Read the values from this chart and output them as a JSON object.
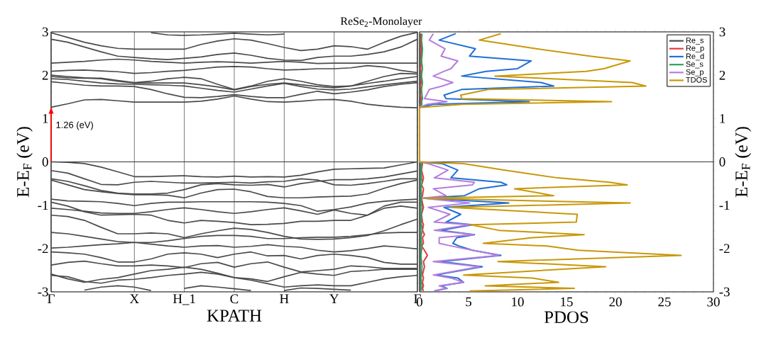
{
  "chart_data": [
    {
      "type": "line",
      "title": "ReSe$_{2}$-Monolayer",
      "xlabel": "KPATH",
      "ylabel": "E-E$_{F}$ (eV)",
      "categories": [
        "Γ",
        null,
        null,
        null,
        null,
        "X",
        null,
        null,
        "H_1",
        null,
        null,
        "C",
        null,
        null,
        "H",
        null,
        null,
        "Y",
        null,
        null,
        null,
        null,
        "Γ"
      ],
      "ylim": [
        -3,
        3
      ],
      "yticks": [
        -3,
        -2,
        -1,
        0,
        1,
        2,
        3
      ],
      "series": [
        {
          "color": "#4a4a4a",
          "values": [
            1.26,
            1.34,
            1.43,
            1.44,
            1.41,
            1.38,
            1.38,
            1.38,
            1.38,
            1.4,
            1.45,
            1.52,
            1.45,
            1.39,
            1.38,
            1.4,
            1.43,
            1.44,
            1.4,
            1.33,
            1.29,
            1.26,
            1.25
          ]
        },
        {
          "color": "#4a4a4a",
          "values": [
            1.85,
            1.81,
            1.77,
            1.75,
            1.75,
            1.74,
            1.67,
            1.57,
            1.49,
            1.48,
            1.51,
            1.55,
            1.51,
            1.48,
            1.48,
            1.56,
            1.63,
            1.57,
            1.61,
            1.66,
            1.74,
            1.79,
            1.83
          ]
        },
        {
          "color": "#4a4a4a",
          "values": [
            1.92,
            1.9,
            1.86,
            1.82,
            1.8,
            1.79,
            1.78,
            1.77,
            1.75,
            1.7,
            1.65,
            1.61,
            1.68,
            1.75,
            1.81,
            1.74,
            1.68,
            1.66,
            1.68,
            1.73,
            1.78,
            1.82,
            1.86
          ]
        },
        {
          "color": "#4a4a4a",
          "values": [
            1.97,
            1.94,
            1.93,
            1.93,
            1.88,
            1.83,
            1.86,
            1.92,
            1.95,
            1.92,
            1.79,
            1.67,
            1.75,
            1.86,
            1.92,
            1.86,
            1.78,
            1.74,
            1.75,
            1.86,
            1.97,
            2.04,
            2.03
          ]
        },
        {
          "color": "#4a4a4a",
          "values": [
            2.0,
            1.97,
            1.94,
            1.92,
            1.86,
            1.82,
            1.82,
            1.82,
            1.82,
            1.78,
            1.73,
            1.66,
            1.74,
            1.79,
            1.82,
            1.78,
            1.74,
            1.71,
            1.75,
            1.81,
            1.86,
            1.92,
            1.97
          ]
        },
        {
          "color": "#4a4a4a",
          "values": [
            2.09,
            2.11,
            2.12,
            2.1,
            2.08,
            2.04,
            2.06,
            2.09,
            2.11,
            2.15,
            2.19,
            2.2,
            2.19,
            2.15,
            2.12,
            2.13,
            2.15,
            2.15,
            2.17,
            2.22,
            2.19,
            2.11,
            2.06
          ]
        },
        {
          "color": "#4a4a4a",
          "values": [
            2.28,
            2.3,
            2.32,
            2.35,
            2.37,
            2.35,
            2.32,
            2.3,
            2.28,
            2.3,
            2.31,
            2.3,
            2.28,
            2.3,
            2.32,
            2.3,
            2.27,
            2.28,
            2.28,
            2.28,
            2.28,
            2.28,
            2.28
          ]
        },
        {
          "color": "#4a4a4a",
          "values": [
            2.83,
            2.76,
            2.65,
            2.54,
            2.44,
            2.41,
            2.38,
            2.36,
            2.39,
            2.42,
            2.48,
            2.51,
            2.46,
            2.39,
            2.35,
            2.34,
            2.41,
            2.44,
            2.44,
            2.48,
            2.54,
            2.65,
            2.83
          ]
        },
        {
          "color": "#4a4a4a",
          "values": [
            2.98,
            2.87,
            2.76,
            2.68,
            2.62,
            2.6,
            2.6,
            2.6,
            2.6,
            2.71,
            2.79,
            2.84,
            2.81,
            2.73,
            2.64,
            2.57,
            2.6,
            2.68,
            2.66,
            2.6,
            2.76,
            2.9,
            2.99
          ]
        },
        {
          "color": "#4a4a4a",
          "values": [
            null,
            null,
            null,
            null,
            null,
            null,
            2.98,
            2.93,
            2.92,
            2.93,
            2.95,
            2.97,
            2.95,
            2.93,
            2.95,
            null,
            null,
            null,
            null,
            null,
            null,
            null,
            null
          ]
        },
        {
          "color": "#4a4a4a",
          "values": [
            0,
            -0.01,
            -0.04,
            -0.12,
            -0.23,
            -0.34,
            -0.34,
            -0.33,
            -0.32,
            -0.34,
            -0.35,
            -0.33,
            -0.35,
            -0.34,
            -0.35,
            -0.31,
            -0.23,
            -0.17,
            -0.16,
            -0.15,
            -0.14,
            -0.07,
            0
          ]
        },
        {
          "color": "#4a4a4a",
          "values": [
            -0.2,
            -0.26,
            -0.39,
            -0.52,
            -0.53,
            -0.47,
            -0.45,
            -0.47,
            -0.49,
            -0.49,
            -0.48,
            -0.47,
            -0.49,
            -0.46,
            -0.45,
            -0.39,
            -0.42,
            -0.53,
            -0.54,
            -0.5,
            -0.45,
            -0.39,
            -0.39
          ]
        },
        {
          "color": "#4a4a4a",
          "values": [
            -0.39,
            -0.45,
            -0.55,
            -0.66,
            -0.72,
            -0.74,
            -0.74,
            -0.72,
            -0.64,
            -0.53,
            -0.5,
            -0.53,
            -0.54,
            -0.52,
            -0.58,
            -0.5,
            -0.45,
            -0.41,
            -0.41,
            -0.39,
            -0.35,
            -0.28,
            -0.21
          ]
        },
        {
          "color": "#4a4a4a",
          "values": [
            -0.42,
            -0.53,
            -0.64,
            -0.69,
            -0.73,
            -0.76,
            -0.76,
            -0.77,
            -0.83,
            -0.72,
            -0.64,
            -0.63,
            -0.69,
            -0.8,
            -0.83,
            -0.83,
            -0.81,
            -0.8,
            -0.79,
            -0.74,
            -0.61,
            -0.5,
            -0.42
          ]
        },
        {
          "color": "#4a4a4a",
          "values": [
            -0.86,
            -0.9,
            -0.91,
            -0.92,
            -0.96,
            -1.01,
            -0.96,
            -0.93,
            -0.93,
            -0.92,
            -0.92,
            -0.92,
            -0.92,
            -0.93,
            -0.96,
            -1.01,
            -1.14,
            -1.1,
            -1.04,
            -0.95,
            -0.91,
            -0.88,
            -0.86
          ]
        },
        {
          "color": "#4a4a4a",
          "values": [
            -0.93,
            -1.02,
            -1.15,
            -1.23,
            -1.22,
            -1.21,
            -1.23,
            -1.35,
            -1.41,
            -1.35,
            -1.37,
            -1.4,
            -1.45,
            -1.44,
            -1.42,
            -1.37,
            -1.37,
            -1.35,
            -1.35,
            -1.23,
            -1.07,
            -1.02,
            -1.07
          ]
        },
        {
          "color": "#4a4a4a",
          "values": [
            -1.07,
            -1.1,
            -1.14,
            -1.18,
            -1.19,
            -1.19,
            -1.15,
            -1.1,
            -1.06,
            -1.1,
            -1.15,
            -1.19,
            -1.15,
            -1.1,
            -1.06,
            -1.13,
            -1.21,
            -1.11,
            -1.19,
            -1.23,
            -1.02,
            -0.93,
            -0.93
          ]
        },
        {
          "color": "#4a4a4a",
          "values": [
            -1.23,
            -1.26,
            -1.35,
            -1.51,
            -1.66,
            -1.66,
            -1.64,
            -1.66,
            -1.75,
            -1.66,
            -1.59,
            -1.53,
            -1.56,
            -1.63,
            -1.72,
            -1.78,
            -1.79,
            -1.78,
            -1.75,
            -1.7,
            -1.59,
            -1.45,
            -1.32
          ]
        },
        {
          "color": "#4a4a4a",
          "values": [
            -1.63,
            -1.66,
            -1.72,
            -1.78,
            -1.84,
            -1.86,
            -1.86,
            -1.82,
            -1.77,
            -1.72,
            -1.7,
            -1.7,
            -1.72,
            -1.77,
            -1.77,
            -1.75,
            -1.74,
            -1.74,
            -1.72,
            -1.68,
            -1.64,
            -1.63,
            -1.63
          ]
        },
        {
          "color": "#4a4a4a",
          "values": [
            -1.99,
            -1.97,
            -1.94,
            -1.91,
            -1.89,
            -1.86,
            -1.9,
            -1.94,
            -1.97,
            -1.94,
            -1.93,
            -1.97,
            -1.95,
            -1.91,
            -1.95,
            -1.97,
            -2.04,
            -2.08,
            -2.05,
            -2.0,
            -1.94,
            -1.97,
            -2.01
          ]
        },
        {
          "color": "#4a4a4a",
          "values": [
            -2.08,
            -2.1,
            -2.13,
            -2.21,
            -2.31,
            -2.31,
            -2.24,
            -2.13,
            -2.1,
            -2.13,
            -2.21,
            -2.13,
            -2.08,
            -2.17,
            -2.16,
            -2.24,
            -2.16,
            -2.13,
            -2.16,
            -2.21,
            -2.32,
            -2.36,
            -2.36
          ]
        },
        {
          "color": "#4a4a4a",
          "values": [
            -2.38,
            -2.32,
            -2.29,
            -2.35,
            -2.4,
            -2.4,
            -2.38,
            -2.4,
            -2.44,
            -2.35,
            -2.32,
            -2.43,
            -2.35,
            -2.31,
            -2.43,
            -2.54,
            -2.51,
            -2.48,
            -2.4,
            -2.42,
            -2.46,
            -2.46,
            -2.46
          ]
        },
        {
          "color": "#4a4a4a",
          "values": [
            -2.59,
            -2.7,
            -2.78,
            -2.71,
            -2.67,
            -2.59,
            -2.51,
            -2.48,
            -2.43,
            -2.48,
            -2.57,
            -2.67,
            -2.73,
            -2.81,
            -2.89,
            -2.86,
            -2.84,
            -2.86,
            -2.86,
            -2.78,
            -2.7,
            -2.65,
            -2.62
          ]
        },
        {
          "color": "#4a4a4a",
          "values": [
            -2.62,
            -2.65,
            -2.76,
            -2.8,
            -2.73,
            -2.71,
            -2.67,
            -2.62,
            -2.59,
            -2.55,
            -2.59,
            -2.67,
            -2.7,
            -2.76,
            -2.65,
            -2.55,
            -2.59,
            -2.62,
            -2.53,
            -2.51,
            -2.48,
            -2.48,
            -2.48
          ]
        },
        {
          "color": "#4a4a4a",
          "values": [
            null,
            null,
            -2.96,
            -2.89,
            -2.86,
            -2.89,
            -2.97,
            null,
            -2.92,
            -2.86,
            -2.89,
            -2.93,
            -2.97,
            null,
            -2.97,
            -2.91,
            -2.92,
            -2.94,
            -2.96,
            null,
            null,
            null,
            null
          ]
        }
      ],
      "grid": "x",
      "ref_lines": [
        {
          "axis": "y",
          "value": 0,
          "color": "#333333"
        }
      ],
      "annotations": [
        {
          "text": "1.26 (eV)",
          "x": "Γ",
          "y": 1.26
        }
      ]
    },
    {
      "type": "line",
      "xlabel": "PDOS",
      "ylabel": "E-E$_{F}$ (eV)",
      "xlim": [
        0,
        30
      ],
      "xticks": [
        0,
        5,
        10,
        15,
        20,
        25,
        30
      ],
      "ylim": [
        -3,
        3
      ],
      "yticks": [
        -3,
        -2,
        -1,
        0,
        1,
        2,
        3
      ],
      "legend": "top right",
      "series": [
        {
          "name": "Re_s",
          "color": "#4d4d4d",
          "x": [
            0.05,
            0.05,
            0.05,
            0.05,
            0.05,
            0.05,
            0.05,
            0.05,
            0.05,
            0.05,
            0.05,
            0.05,
            0.05,
            0.05,
            0.05,
            0.05,
            0,
            0,
            0.05,
            0.05,
            0.05,
            0.05,
            0.05,
            0.05,
            0.05,
            0.05,
            0.05,
            0.05,
            0.05,
            0.05,
            0.05,
            0.05,
            0.05,
            0.05,
            0.05,
            0.05,
            0.05,
            0.05,
            0.05,
            0.05,
            0.05,
            0.05,
            0.05,
            0.05,
            0.05,
            0.05
          ],
          "values": [
            2.96,
            2.81,
            2.61,
            2.44,
            2.33,
            2.15,
            2.09,
            1.98,
            1.83,
            1.75,
            1.67,
            1.54,
            1.46,
            1.39,
            1.33,
            1.26,
            1.25,
            0,
            -0.04,
            -0.19,
            -0.37,
            -0.47,
            -0.53,
            -0.62,
            -0.78,
            -0.84,
            -0.95,
            -1.05,
            -1.21,
            -1.39,
            -1.45,
            -1.58,
            -1.68,
            -1.75,
            -1.88,
            -1.94,
            -2.04,
            -2.16,
            -2.3,
            -2.42,
            -2.61,
            -2.68,
            -2.78,
            -2.86,
            -2.92,
            -2.98
          ]
        },
        {
          "name": "Re_p",
          "color": "#e8383d",
          "x": [
            0.15,
            0.1,
            0.2,
            0.15,
            0.2,
            0.1,
            0.15,
            0.2,
            0.15,
            0.1,
            0.15,
            0.1,
            0.15,
            0.2,
            0.1,
            0,
            0,
            0,
            0.3,
            0.2,
            0.4,
            0.3,
            0.2,
            0.4,
            0.3,
            0.2,
            0.3,
            0.4,
            0.2,
            0.3,
            0.4,
            0.3,
            0.5,
            0.3,
            0.4,
            0.2,
            0.5,
            0.8,
            0.4,
            0.5,
            0.3,
            0.4,
            0.3,
            0.4,
            0.3,
            0.4
          ],
          "values": [
            2.96,
            2.81,
            2.61,
            2.44,
            2.33,
            2.15,
            2.09,
            1.98,
            1.83,
            1.75,
            1.67,
            1.54,
            1.46,
            1.39,
            1.33,
            1.26,
            1.25,
            0,
            -0.04,
            -0.19,
            -0.37,
            -0.47,
            -0.53,
            -0.62,
            -0.78,
            -0.84,
            -0.95,
            -1.05,
            -1.21,
            -1.39,
            -1.45,
            -1.58,
            -1.68,
            -1.75,
            -1.88,
            -1.94,
            -2.04,
            -2.16,
            -2.3,
            -2.42,
            -2.61,
            -2.68,
            -2.78,
            -2.86,
            -2.92,
            -2.98
          ]
        },
        {
          "name": "Re_d",
          "color": "#1f6fd8",
          "x": [
            3.7,
            2,
            5.7,
            5.1,
            11.4,
            10,
            6.8,
            4.3,
            12.4,
            13.7,
            4.3,
            2.5,
            2.7,
            11.2,
            1.5,
            0,
            0,
            0,
            2.3,
            3.9,
            3.2,
            8.3,
            8.9,
            6.1,
            4.6,
            0.4,
            9.1,
            2.5,
            4.2,
            2.7,
            5.4,
            2.2,
            5.6,
            3.8,
            3.4,
            4,
            5.4,
            8.3,
            2.2,
            6.4,
            1.7,
            3.9,
            4.5,
            2.2,
            2.8,
            1.5
          ],
          "values": [
            2.96,
            2.81,
            2.61,
            2.44,
            2.33,
            2.15,
            2.09,
            1.98,
            1.83,
            1.75,
            1.67,
            1.54,
            1.46,
            1.39,
            1.33,
            1.26,
            1.25,
            0,
            -0.04,
            -0.19,
            -0.37,
            -0.47,
            -0.53,
            -0.62,
            -0.78,
            -0.84,
            -0.95,
            -1.05,
            -1.21,
            -1.39,
            -1.45,
            -1.58,
            -1.68,
            -1.75,
            -1.88,
            -1.94,
            -2.04,
            -2.16,
            -2.3,
            -2.42,
            -2.61,
            -2.68,
            -2.78,
            -2.86,
            -2.92,
            -2.98
          ]
        },
        {
          "name": "Se_s",
          "color": "#2ca25f",
          "x": [
            0.25,
            0.2,
            0.3,
            0.25,
            0.2,
            0.3,
            0.25,
            0.2,
            0.3,
            0.25,
            0.2,
            0.25,
            0.3,
            0.2,
            0.25,
            0,
            0,
            0,
            0.2,
            0.15,
            0.2,
            0.25,
            0.2,
            0.15,
            0.2,
            0.15,
            0.2,
            0.25,
            0.2,
            0.15,
            0.2,
            0.25,
            0.2,
            0.15,
            0.2,
            0.25,
            0.2,
            0.15,
            0.2,
            0.25,
            0.2,
            0.15,
            0.2,
            0.25,
            0.2,
            0.15
          ],
          "values": [
            2.96,
            2.81,
            2.61,
            2.44,
            2.33,
            2.15,
            2.09,
            1.98,
            1.83,
            1.75,
            1.67,
            1.54,
            1.46,
            1.39,
            1.33,
            1.26,
            1.25,
            0,
            -0.04,
            -0.19,
            -0.37,
            -0.47,
            -0.53,
            -0.62,
            -0.78,
            -0.84,
            -0.95,
            -1.05,
            -1.21,
            -1.39,
            -1.45,
            -1.58,
            -1.68,
            -1.75,
            -1.88,
            -1.94,
            -2.04,
            -2.16,
            -2.3,
            -2.42,
            -2.61,
            -2.68,
            -2.78,
            -2.86,
            -2.92,
            -2.98
          ]
        },
        {
          "name": "Se_p",
          "color": "#b57edc",
          "x": [
            1.4,
            1,
            2.6,
            2.2,
            3.9,
            3.2,
            2.5,
            1.4,
            3.4,
            2.3,
            1,
            0.7,
            0.5,
            2.8,
            0.8,
            0,
            0,
            0,
            0.9,
            2.9,
            1.5,
            5.6,
            5.4,
            1.4,
            2.7,
            0.3,
            5.1,
            0.9,
            3.1,
            1.5,
            5.1,
            1.5,
            5.5,
            2,
            2,
            3.2,
            5.4,
            8.1,
            1.4,
            6.1,
            1.4,
            3.2,
            4.5,
            2,
            2.7,
            1.5
          ],
          "values": [
            2.96,
            2.81,
            2.61,
            2.44,
            2.33,
            2.15,
            2.09,
            1.98,
            1.83,
            1.75,
            1.67,
            1.54,
            1.46,
            1.39,
            1.33,
            1.26,
            1.25,
            0,
            -0.04,
            -0.19,
            -0.37,
            -0.47,
            -0.53,
            -0.62,
            -0.78,
            -0.84,
            -0.95,
            -1.05,
            -1.21,
            -1.39,
            -1.45,
            -1.58,
            -1.68,
            -1.75,
            -1.88,
            -1.94,
            -2.04,
            -2.16,
            -2.3,
            -2.42,
            -2.61,
            -2.68,
            -2.78,
            -2.86,
            -2.92,
            -2.98
          ]
        },
        {
          "name": "TDOS",
          "color": "#c8980a",
          "x": [
            8.3,
            6.1,
            11.9,
            17.4,
            21.5,
            18.8,
            17,
            7.7,
            21.7,
            23.1,
            7,
            4.2,
            4.3,
            19.6,
            4.4,
            0.2,
            0,
            0,
            4.5,
            8.6,
            14.1,
            19.4,
            21.2,
            9.7,
            13.7,
            0.5,
            21.5,
            3.2,
            16.1,
            16,
            5.2,
            8.1,
            16.8,
            11.5,
            6.5,
            13,
            16.2,
            26.7,
            8,
            19,
            4.5,
            11.5,
            14.2,
            6.7,
            15.8,
            5.1
          ],
          "values": [
            2.96,
            2.81,
            2.61,
            2.44,
            2.33,
            2.15,
            2.09,
            1.98,
            1.83,
            1.75,
            1.67,
            1.54,
            1.46,
            1.39,
            1.33,
            1.26,
            1.25,
            0,
            -0.04,
            -0.19,
            -0.37,
            -0.47,
            -0.53,
            -0.62,
            -0.78,
            -0.84,
            -0.95,
            -1.05,
            -1.21,
            -1.39,
            -1.45,
            -1.58,
            -1.68,
            -1.75,
            -1.88,
            -1.94,
            -2.04,
            -2.16,
            -2.3,
            -2.42,
            -2.61,
            -2.68,
            -2.78,
            -2.86,
            -2.92,
            -2.98
          ]
        }
      ],
      "ref_lines": [
        {
          "axis": "y",
          "value": 0,
          "color": "#333333"
        }
      ]
    }
  ]
}
